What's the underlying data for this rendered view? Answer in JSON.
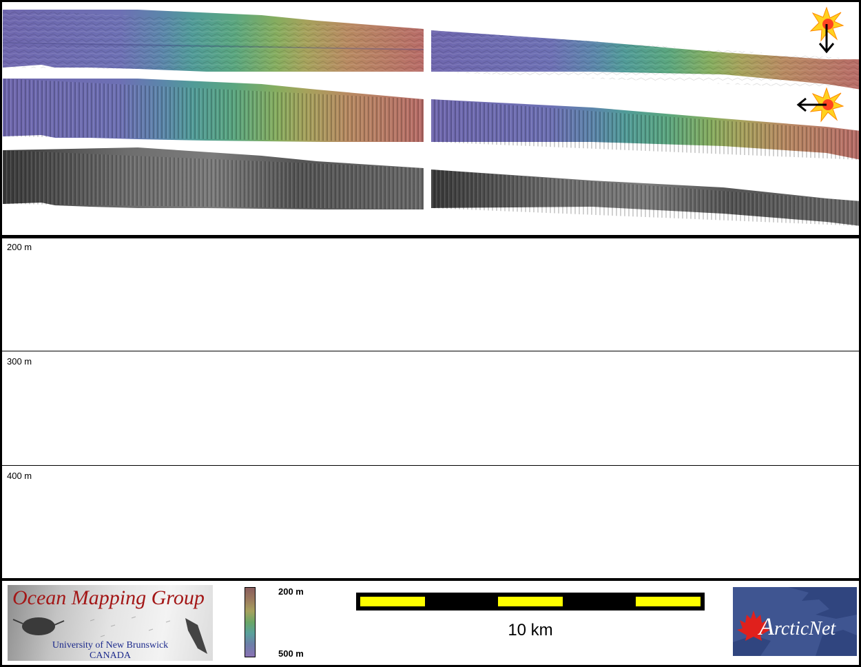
{
  "map": {
    "strips": [
      {
        "name": "bathymetry-sun-north",
        "palette": "depth-color",
        "colors": [
          "#7a6cb4",
          "#6f73b8",
          "#5f96a2",
          "#5fa888",
          "#7fb46a",
          "#a7ac5e",
          "#b88a62",
          "#b46e6a"
        ]
      },
      {
        "name": "bathymetry-sun-west",
        "palette": "depth-color",
        "colors": [
          "#7a6cb4",
          "#6f73b8",
          "#5f96a2",
          "#5fa888",
          "#7fb46a",
          "#a7ac5e",
          "#b88a62",
          "#b46e6a"
        ]
      },
      {
        "name": "backscatter",
        "palette": "grayscale",
        "colors": [
          "#2a2a2a",
          "#4a4a4a",
          "#6a6a6a",
          "#8a8a8a"
        ]
      }
    ],
    "sun_icons": [
      {
        "name": "sun-north",
        "arrow": "down"
      },
      {
        "name": "sun-west",
        "arrow": "left"
      }
    ]
  },
  "profile": {
    "depth_labels": [
      "200 m",
      "300 m",
      "400 m"
    ]
  },
  "footer": {
    "omg_logo": {
      "title": "Ocean Mapping Group",
      "university": "University of New Brunswick",
      "country": "CANADA",
      "title_color": "#a31717",
      "text_color": "#1c2a8c"
    },
    "colorbar": {
      "top_label": "200 m",
      "bottom_label": "500 m"
    },
    "scalebar": {
      "label": "10 km",
      "segment_color": "#ffff00"
    },
    "arctic_logo": {
      "first_letter": "A",
      "rest": "rcticNet",
      "background": "#3f5591",
      "leaf_color": "#e0201c"
    }
  }
}
